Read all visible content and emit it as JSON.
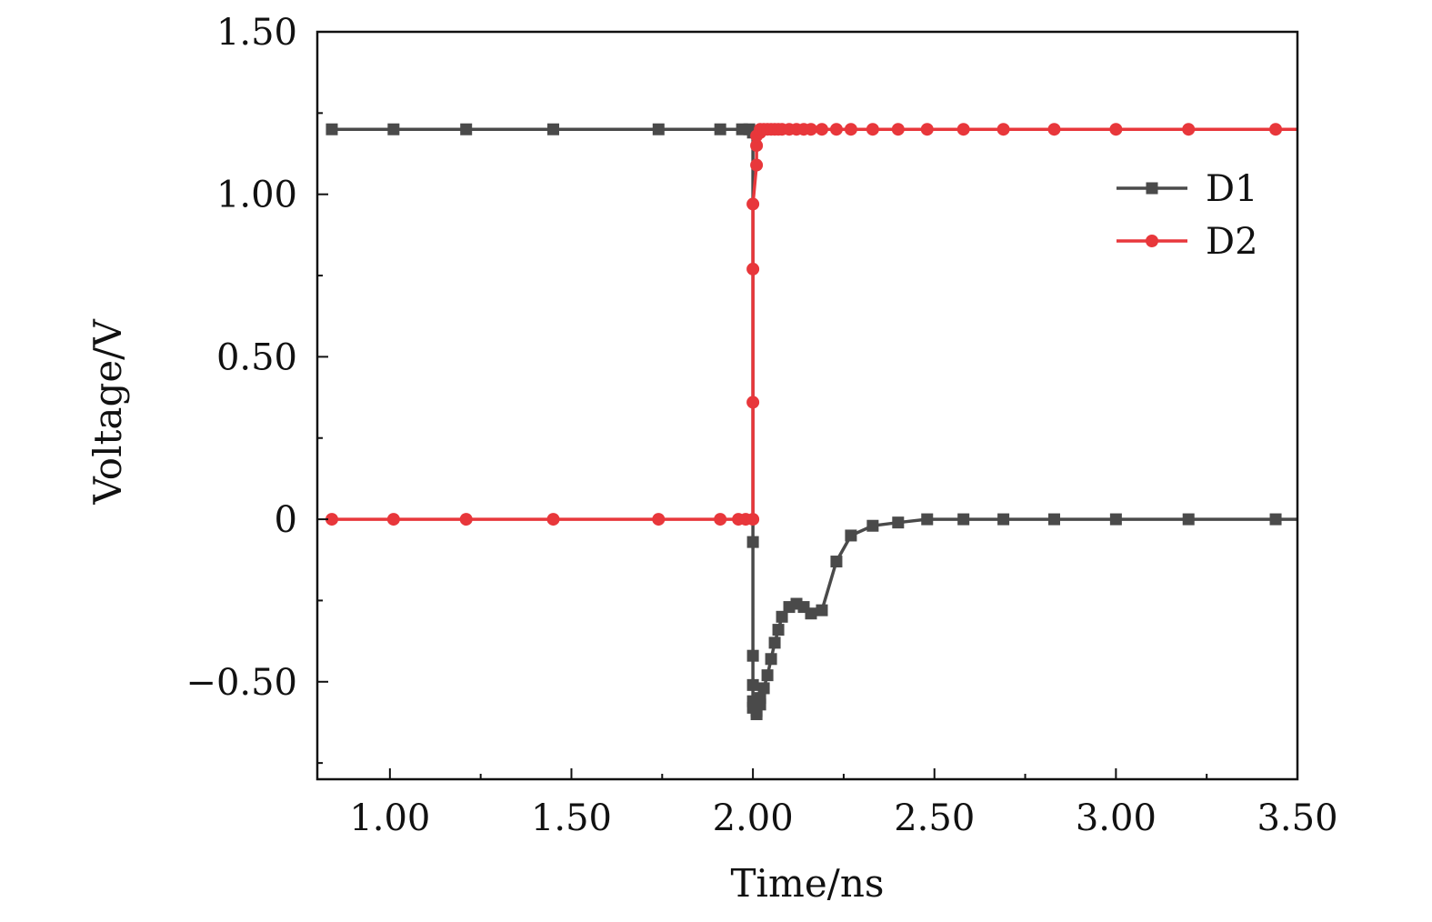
{
  "chart_data": {
    "type": "line",
    "title": "",
    "xlabel": "Time/ns",
    "ylabel": "Voltage/V",
    "xlim": [
      0.8,
      3.5
    ],
    "ylim": [
      -0.8,
      1.5
    ],
    "xticks": [
      1.0,
      1.5,
      2.0,
      2.5,
      3.0,
      3.5
    ],
    "xtick_labels": [
      "1.00",
      "1.50",
      "2.00",
      "2.50",
      "3.00",
      "3.50"
    ],
    "yticks": [
      -0.5,
      0,
      0.5,
      1.0,
      1.5
    ],
    "ytick_labels": [
      "−0.50",
      "0",
      "0.50",
      "1.00",
      "1.50"
    ],
    "grid": false,
    "legend_position": "top-right",
    "series": [
      {
        "name": "D1",
        "color": "#4a4a4a",
        "marker": "square",
        "points": [
          [
            0.84,
            1.2
          ],
          [
            1.01,
            1.2
          ],
          [
            1.21,
            1.2
          ],
          [
            1.45,
            1.2
          ],
          [
            1.74,
            1.2
          ],
          [
            1.91,
            1.2
          ],
          [
            1.97,
            1.2
          ],
          [
            1.99,
            1.2
          ],
          [
            2.0,
            1.19
          ],
          [
            2.0,
            -0.07
          ],
          [
            2.0,
            -0.42
          ],
          [
            2.0,
            -0.51
          ],
          [
            2.0,
            -0.56
          ],
          [
            2.0,
            -0.58
          ],
          [
            2.01,
            -0.6
          ],
          [
            2.01,
            -0.59
          ],
          [
            2.02,
            -0.57
          ],
          [
            2.02,
            -0.55
          ],
          [
            2.03,
            -0.52
          ],
          [
            2.04,
            -0.48
          ],
          [
            2.05,
            -0.43
          ],
          [
            2.06,
            -0.38
          ],
          [
            2.07,
            -0.34
          ],
          [
            2.08,
            -0.3
          ],
          [
            2.1,
            -0.27
          ],
          [
            2.12,
            -0.26
          ],
          [
            2.14,
            -0.27
          ],
          [
            2.16,
            -0.29
          ],
          [
            2.19,
            -0.28
          ],
          [
            2.23,
            -0.13
          ],
          [
            2.27,
            -0.05
          ],
          [
            2.33,
            -0.02
          ],
          [
            2.4,
            -0.01
          ],
          [
            2.48,
            0.0
          ],
          [
            2.58,
            0.0
          ],
          [
            2.69,
            0.0
          ],
          [
            2.83,
            0.0
          ],
          [
            3.0,
            0.0
          ],
          [
            3.2,
            0.0
          ],
          [
            3.44,
            0.0
          ],
          [
            3.5,
            0.0
          ]
        ]
      },
      {
        "name": "D2",
        "color": "#e8373b",
        "marker": "circle",
        "points": [
          [
            0.84,
            0.0
          ],
          [
            1.01,
            0.0
          ],
          [
            1.21,
            0.0
          ],
          [
            1.45,
            0.0
          ],
          [
            1.74,
            0.0
          ],
          [
            1.91,
            0.0
          ],
          [
            1.96,
            0.0
          ],
          [
            1.98,
            0.0
          ],
          [
            2.0,
            0.0
          ],
          [
            2.0,
            0.36
          ],
          [
            2.0,
            0.77
          ],
          [
            2.0,
            0.97
          ],
          [
            2.01,
            1.09
          ],
          [
            2.01,
            1.15
          ],
          [
            2.01,
            1.18
          ],
          [
            2.02,
            1.19
          ],
          [
            2.02,
            1.2
          ],
          [
            2.03,
            1.2
          ],
          [
            2.04,
            1.2
          ],
          [
            2.05,
            1.2
          ],
          [
            2.06,
            1.2
          ],
          [
            2.07,
            1.2
          ],
          [
            2.08,
            1.2
          ],
          [
            2.1,
            1.2
          ],
          [
            2.12,
            1.2
          ],
          [
            2.14,
            1.2
          ],
          [
            2.16,
            1.2
          ],
          [
            2.19,
            1.2
          ],
          [
            2.23,
            1.2
          ],
          [
            2.27,
            1.2
          ],
          [
            2.33,
            1.2
          ],
          [
            2.4,
            1.2
          ],
          [
            2.48,
            1.2
          ],
          [
            2.58,
            1.2
          ],
          [
            2.69,
            1.2
          ],
          [
            2.83,
            1.2
          ],
          [
            3.0,
            1.2
          ],
          [
            3.2,
            1.2
          ],
          [
            3.44,
            1.2
          ],
          [
            3.5,
            1.2
          ]
        ]
      }
    ]
  }
}
